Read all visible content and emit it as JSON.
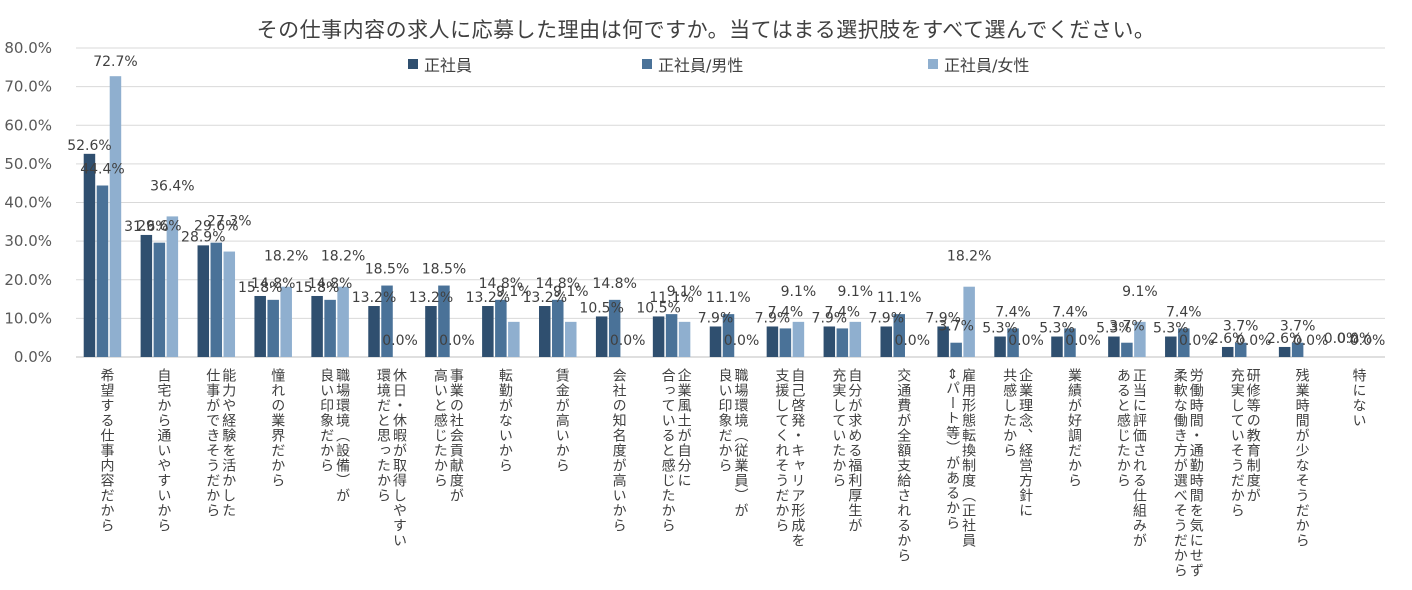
{
  "chart_data": {
    "type": "bar",
    "title": "その仕事内容の求人に応募した理由は何ですか。当てはまる選択肢をすべて選んでください。",
    "ylim": [
      0,
      80
    ],
    "yticks": [
      "0.0%",
      "10.0%",
      "20.0%",
      "30.0%",
      "40.0%",
      "50.0%",
      "60.0%",
      "70.0%",
      "80.0%"
    ],
    "grid": true,
    "legend_position": "top",
    "categories": [
      [
        "希望する仕事内容だから"
      ],
      [
        "自宅から通いやすいから"
      ],
      [
        "能力や経験を活かした",
        "仕事ができそうだから"
      ],
      [
        "憧れの業界だから"
      ],
      [
        "職場環境（設備）が",
        "良い印象だから"
      ],
      [
        "休日・休暇が取得しやすい",
        "環境だと思ったから"
      ],
      [
        "事業の社会貢献度が",
        "高いと感じたから"
      ],
      [
        "転勤がないから"
      ],
      [
        "賃金が高いから"
      ],
      [
        "会社の知名度が高いから"
      ],
      [
        "企業風土が自分に",
        "合っていると感じたから"
      ],
      [
        "職場環境（従業員）が",
        "良い印象だから"
      ],
      [
        "自己啓発・キャリア形成を",
        "支援してくれそうだから"
      ],
      [
        "自分が求める福利厚生が",
        "充実していたから"
      ],
      [
        "交通費が全額支給されるから"
      ],
      [
        "雇用形態転換制度（正社員",
        "⇔パート等）があるから"
      ],
      [
        "企業理念、経営方針に",
        "共感したから"
      ],
      [
        "業績が好調だから"
      ],
      [
        "正当に評価される仕組みが",
        "あると感じたから"
      ],
      [
        "労働時間・通勤時間を気にせず",
        "柔軟な働き方が選べそうだから"
      ],
      [
        "研修等の教育制度が",
        "充実していそうだから"
      ],
      [
        "残業時間が少なそうだから"
      ],
      [
        "特にない"
      ]
    ],
    "series": [
      {
        "name": "正社員",
        "color": "#2F4F6F",
        "values": [
          52.6,
          31.6,
          28.9,
          15.8,
          15.8,
          13.2,
          13.2,
          13.2,
          13.2,
          10.5,
          10.5,
          7.9,
          7.9,
          7.9,
          7.9,
          7.9,
          5.3,
          5.3,
          5.3,
          5.3,
          2.6,
          2.6,
          0.0
        ],
        "labels": [
          "52.6%",
          "31.6%",
          "28.9%",
          "15.8%",
          "15.8%",
          "13.2%",
          "13.2%",
          "13.2%",
          "13.2%",
          "10.5%",
          "10.5%",
          "7.9%",
          "7.9%",
          "7.9%",
          "7.9%",
          "7.9%",
          "5.3%",
          "5.3%",
          "5.3%",
          "5.3%",
          "2.6%",
          "2.6%",
          "0.0%"
        ]
      },
      {
        "name": "正社員/男性",
        "color": "#4A7298",
        "values": [
          44.4,
          29.6,
          29.6,
          14.8,
          14.8,
          18.5,
          18.5,
          14.8,
          14.8,
          14.8,
          11.1,
          11.1,
          7.4,
          7.4,
          11.1,
          3.7,
          7.4,
          7.4,
          3.7,
          7.4,
          3.7,
          3.7,
          0.0
        ],
        "labels": [
          "44.4%",
          "29.6%",
          "29.6%",
          "14.8%",
          "14.8%",
          "18.5%",
          "18.5%",
          "14.8%",
          "14.8%",
          "14.8%",
          "11.1%",
          "11.1%",
          "7.4%",
          "7.4%",
          "11.1%",
          "3.7%",
          "7.4%",
          "7.4%",
          "3.7%",
          "7.4%",
          "3.7%",
          "3.7%",
          "0.0%"
        ]
      },
      {
        "name": "正社員/女性",
        "color": "#8FAFCF",
        "values": [
          72.7,
          36.4,
          27.3,
          18.2,
          18.2,
          0.0,
          0.0,
          9.1,
          9.1,
          0.0,
          9.1,
          0.0,
          9.1,
          9.1,
          0.0,
          18.2,
          0.0,
          0.0,
          9.1,
          0.0,
          0.0,
          0.0,
          0.0
        ],
        "labels": [
          "72.7%",
          "36.4%",
          "27.3%",
          "18.2%",
          "18.2%",
          "0.0%",
          "0.0%",
          "9.1%",
          "9.1%",
          "0.0%",
          "9.1%",
          "0.0%",
          "9.1%",
          "9.1%",
          "0.0%",
          "18.2%",
          "0.0%",
          "0.0%",
          "9.1%",
          "0.0%",
          "0.0%",
          "0.0%",
          "0.0%"
        ]
      }
    ]
  }
}
